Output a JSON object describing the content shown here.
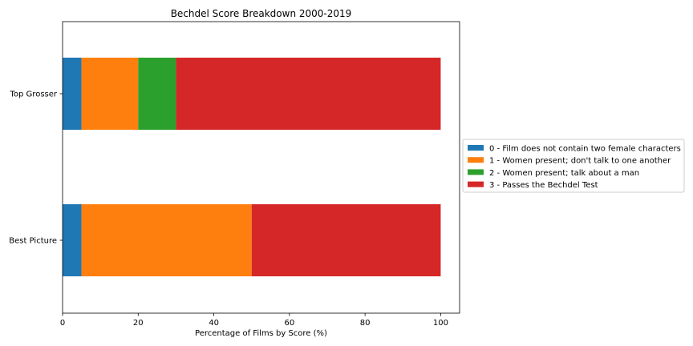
{
  "chart_data": {
    "type": "bar",
    "orientation": "horizontal",
    "stacked": true,
    "title": "Bechdel Score Breakdown 2000-2019",
    "xlabel": "Percentage of Films by Score (%)",
    "ylabel": "",
    "xlim": [
      0,
      105
    ],
    "xticks": [
      "0",
      "20",
      "40",
      "60",
      "80",
      "100"
    ],
    "categories": [
      "Top Grosser",
      "Best Picture"
    ],
    "series": [
      {
        "name": "0 - Film does not contain two female characters",
        "color": "#1f77b4",
        "values": [
          5,
          5
        ]
      },
      {
        "name": "1 - Women present; don't talk to one another",
        "color": "#ff7f0e",
        "values": [
          15,
          45
        ]
      },
      {
        "name": "2 - Women present; talk about a man",
        "color": "#2ca02c",
        "values": [
          10,
          0
        ]
      },
      {
        "name": "3 - Passes the Bechdel Test",
        "color": "#d62728",
        "values": [
          70,
          50
        ]
      }
    ],
    "legend_placement": "right",
    "grid": false
  }
}
